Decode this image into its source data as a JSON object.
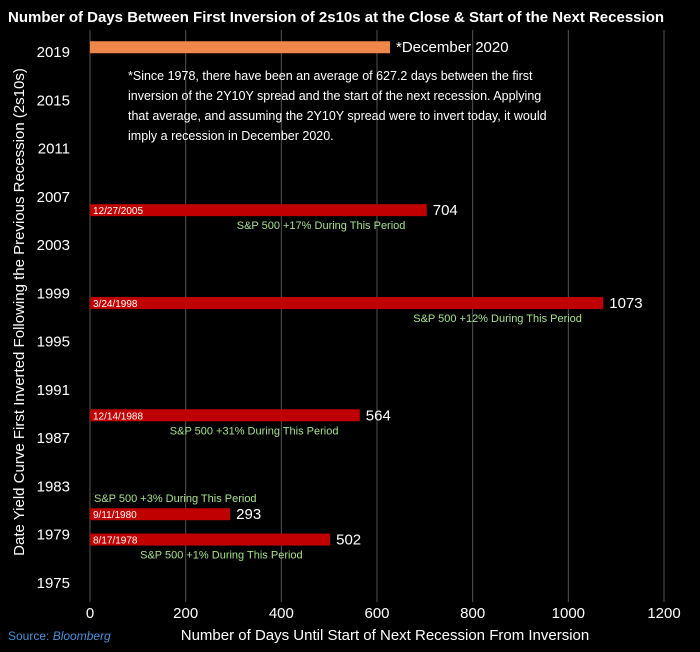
{
  "chart_data": {
    "type": "bar",
    "orientation": "horizontal",
    "title": "Number of Days Between First Inversion of 2s10s at the Close & Start of the Next Recession",
    "xlabel": "Number of Days Until Start of Next Recession From Inversion",
    "ylabel": "Date Yield Curve First Inverted Following the Previous Recession (2s10s)",
    "xlim": [
      0,
      1200
    ],
    "xticks": [
      "0",
      "200",
      "400",
      "600",
      "800",
      "1000",
      "1200"
    ],
    "ylim": [
      1975,
      2020
    ],
    "yticks": [
      "1975",
      "1979",
      "1983",
      "1987",
      "1991",
      "1995",
      "1999",
      "2003",
      "2007",
      "2011",
      "2015",
      "2019"
    ],
    "grid": "vertical",
    "bars": [
      {
        "year": 1978.6,
        "date": "8/17/1978",
        "value": 502,
        "value_label": "502",
        "color": "#c00000",
        "sp_note": "S&P 500 +1% During This Period"
      },
      {
        "year": 1980.7,
        "date": "9/11/1980",
        "value": 293,
        "value_label": "293",
        "color": "#c00000",
        "sp_note": "S&P 500 +3% During This Period"
      },
      {
        "year": 1988.9,
        "date": "12/14/1988",
        "value": 564,
        "value_label": "564",
        "color": "#c00000",
        "sp_note": "S&P 500 +31% During This Period"
      },
      {
        "year": 1998.2,
        "date": "3/24/1998",
        "value": 1073,
        "value_label": "1073",
        "color": "#c00000",
        "sp_note": "S&P 500 +12% During This Period"
      },
      {
        "year": 2005.9,
        "date": "12/27/2005",
        "value": 704,
        "value_label": "704",
        "color": "#c00000",
        "sp_note": "S&P 500 +17% During This Period"
      },
      {
        "year": 2019.4,
        "date": "",
        "value": 627.2,
        "value_label": "*December 2020",
        "color": "#f0874a",
        "sp_note": ""
      }
    ],
    "annotation": [
      "*Since 1978, there have been an average of 627.2 days between the first",
      "inversion of the 2Y10Y spread and the start of the next recession. Applying",
      "that average, and assuming the 2Y10Y spread were to invert today, it would",
      "imply a recession in December 2020."
    ],
    "source_label": "Source: ",
    "source_name": "Bloomberg"
  }
}
